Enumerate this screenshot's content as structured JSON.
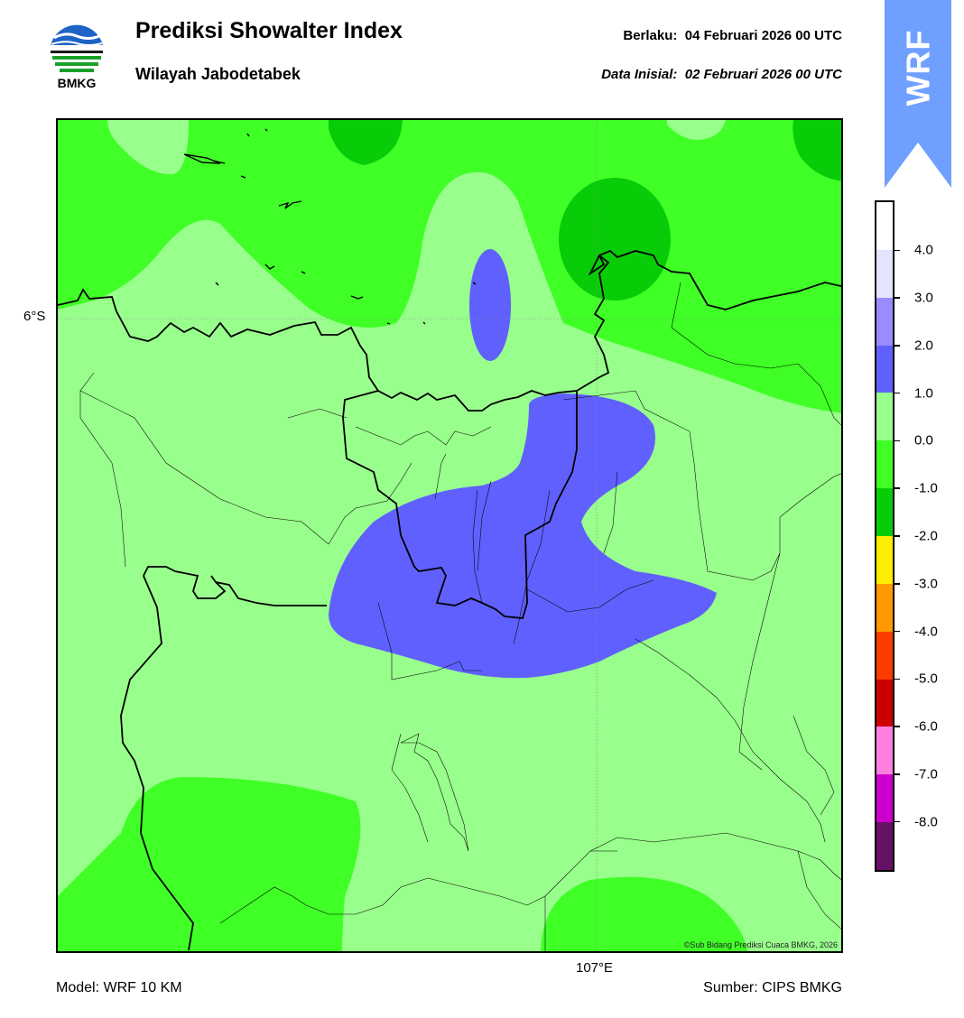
{
  "header": {
    "title": "Prediksi Showalter Index",
    "subtitle": "Wilayah Jabodetabek",
    "valid_label": "Berlaku:",
    "valid_value": "04 Februari 2026 00 UTC",
    "init_label": "Data Inisial:",
    "init_value": "02 Februari 2026 00 UTC"
  },
  "logo": {
    "text": "BMKG",
    "icon": "bmkg-logo-icon"
  },
  "badge": {
    "text": "WRF",
    "color": "#6fa0ff"
  },
  "map": {
    "lat_label": "6°S",
    "lon_label": "107°E",
    "copyright": "©Sub Bidang Prediksi Cuaca BMKG, 2026"
  },
  "footer": {
    "model": "Model: WRF 10 KM",
    "source": "Sumber: CIPS BMKG"
  },
  "colorbar": {
    "ticks": [
      "4.0",
      "3.0",
      "2.0",
      "1.0",
      "0.0",
      "-1.0",
      "-2.0",
      "-3.0",
      "-4.0",
      "-5.0",
      "-6.0",
      "-7.0",
      "-8.0"
    ],
    "colors": [
      "#ffffff",
      "#e4e4ff",
      "#9a8cff",
      "#6060ff",
      "#99ff8c",
      "#3fff26",
      "#08cc08",
      "#ffee00",
      "#ff9900",
      "#ff3c00",
      "#cc0000",
      "#ff7fe0",
      "#cc00cc",
      "#661166"
    ]
  },
  "legend": {
    "dark_green": "#08cc08",
    "green": "#3fff26",
    "light_green": "#99ff8c",
    "blue": "#6060ff"
  }
}
